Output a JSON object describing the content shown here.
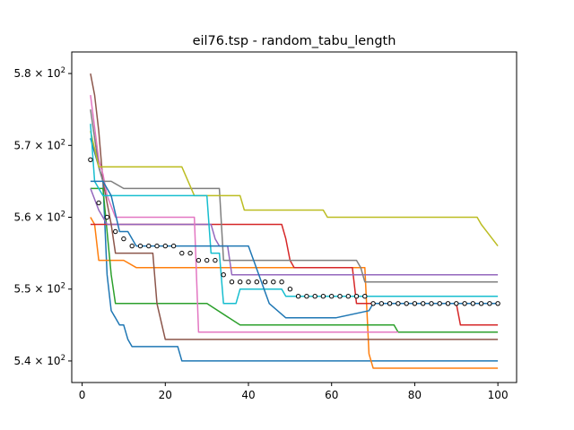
{
  "chart_data": {
    "type": "line",
    "title": "eil76.tsp - random_tabu_length",
    "xlabel": "",
    "ylabel": "",
    "xlim": [
      -2.5,
      104.5
    ],
    "ylim": [
      537,
      583
    ],
    "xticks": [
      {
        "value": 0,
        "label": "0"
      },
      {
        "value": 20,
        "label": "20"
      },
      {
        "value": 40,
        "label": "40"
      },
      {
        "value": 60,
        "label": "60"
      },
      {
        "value": 80,
        "label": "80"
      },
      {
        "value": 100,
        "label": "100"
      }
    ],
    "yticks": [
      {
        "value": 540,
        "base": "5.4",
        "exp": "2"
      },
      {
        "value": 550,
        "base": "5.5",
        "exp": "2"
      },
      {
        "value": 560,
        "base": "5.6",
        "exp": "2"
      },
      {
        "value": 570,
        "base": "5.7",
        "exp": "2"
      },
      {
        "value": 580,
        "base": "5.8",
        "exp": "2"
      }
    ],
    "grid": false,
    "legend": "none",
    "colors": [
      "#1f77b4",
      "#ff7f0e",
      "#2ca02c",
      "#d62728",
      "#9467bd",
      "#8c564b",
      "#e377c2",
      "#7f7f7f",
      "#bcbd22",
      "#17becf"
    ],
    "series": [
      {
        "values": [
          [
            2,
            571
          ],
          [
            3,
            569
          ],
          [
            5,
            565
          ],
          [
            6,
            552
          ],
          [
            7,
            547
          ],
          [
            8,
            546
          ],
          [
            9,
            545
          ],
          [
            10,
            545
          ],
          [
            11,
            543
          ],
          [
            12,
            542
          ],
          [
            23,
            542
          ],
          [
            24,
            540
          ],
          [
            100,
            540
          ]
        ]
      },
      {
        "values": [
          [
            2,
            560
          ],
          [
            3,
            559
          ],
          [
            4,
            554
          ],
          [
            10,
            554
          ],
          [
            13,
            553
          ],
          [
            16,
            553
          ],
          [
            17,
            553
          ],
          [
            68,
            553
          ],
          [
            69,
            541
          ],
          [
            70,
            539
          ],
          [
            100,
            539
          ]
        ]
      },
      {
        "values": [
          [
            2,
            564
          ],
          [
            4,
            564
          ],
          [
            5,
            564
          ],
          [
            7,
            552
          ],
          [
            8,
            548
          ],
          [
            29,
            548
          ],
          [
            30,
            548
          ],
          [
            38,
            545
          ],
          [
            39,
            545
          ],
          [
            75,
            545
          ],
          [
            76,
            544
          ],
          [
            100,
            544
          ]
        ]
      },
      {
        "values": [
          [
            2,
            559
          ],
          [
            4,
            559
          ],
          [
            6,
            559
          ],
          [
            48,
            559
          ],
          [
            49,
            557
          ],
          [
            50,
            554
          ],
          [
            51,
            553
          ],
          [
            65,
            553
          ],
          [
            66,
            548
          ],
          [
            67,
            548
          ],
          [
            70,
            548
          ],
          [
            90,
            548
          ],
          [
            91,
            545
          ],
          [
            100,
            545
          ]
        ]
      },
      {
        "values": [
          [
            2,
            564
          ],
          [
            4,
            561
          ],
          [
            6,
            559
          ],
          [
            31,
            559
          ],
          [
            32,
            557
          ],
          [
            33,
            556
          ],
          [
            35,
            556
          ],
          [
            36,
            552
          ],
          [
            94,
            552
          ],
          [
            95,
            552
          ],
          [
            100,
            552
          ]
        ]
      },
      {
        "values": [
          [
            2,
            580
          ],
          [
            3,
            577
          ],
          [
            4,
            572
          ],
          [
            5,
            565
          ],
          [
            7,
            559
          ],
          [
            8,
            555
          ],
          [
            9,
            555
          ],
          [
            17,
            555
          ],
          [
            18,
            548
          ],
          [
            20,
            543
          ],
          [
            21,
            543
          ],
          [
            100,
            543
          ]
        ]
      },
      {
        "values": [
          [
            2,
            577
          ],
          [
            4,
            568
          ],
          [
            5,
            566
          ],
          [
            6,
            563
          ],
          [
            8,
            560
          ],
          [
            27,
            560
          ],
          [
            28,
            544
          ],
          [
            55,
            544
          ],
          [
            76,
            544
          ]
        ]
      },
      {
        "values": [
          [
            2,
            575
          ],
          [
            4,
            567
          ],
          [
            5,
            565
          ],
          [
            7,
            565
          ],
          [
            10,
            564
          ],
          [
            32,
            564
          ],
          [
            33,
            564
          ],
          [
            34,
            554
          ],
          [
            66,
            554
          ],
          [
            67,
            553
          ],
          [
            68,
            551
          ],
          [
            100,
            551
          ]
        ]
      },
      {
        "values": [
          [
            2,
            572
          ],
          [
            4,
            567
          ],
          [
            6,
            567
          ],
          [
            24,
            567
          ],
          [
            27,
            563
          ],
          [
            36,
            563
          ],
          [
            38,
            563
          ],
          [
            39,
            561
          ],
          [
            58,
            561
          ],
          [
            59,
            560
          ],
          [
            95,
            560
          ],
          [
            96,
            559
          ],
          [
            100,
            556
          ]
        ]
      },
      {
        "values": [
          [
            2,
            573
          ],
          [
            3,
            565
          ],
          [
            4,
            564
          ],
          [
            5,
            563
          ],
          [
            30,
            563
          ],
          [
            31,
            555
          ],
          [
            33,
            555
          ],
          [
            34,
            548
          ],
          [
            35,
            548
          ],
          [
            37,
            548
          ],
          [
            38,
            550
          ],
          [
            48,
            550
          ],
          [
            49,
            549
          ],
          [
            100,
            549
          ]
        ]
      },
      {
        "values": [
          [
            2,
            565
          ],
          [
            5,
            565
          ],
          [
            6,
            564
          ],
          [
            7,
            563
          ],
          [
            9,
            558
          ],
          [
            11,
            558
          ],
          [
            13,
            556
          ],
          [
            40,
            556
          ],
          [
            45,
            548
          ],
          [
            49,
            546
          ],
          [
            50,
            546
          ],
          [
            51,
            546
          ],
          [
            52,
            546
          ],
          [
            61,
            546
          ],
          [
            69,
            547
          ],
          [
            70,
            548
          ],
          [
            100,
            548
          ]
        ]
      }
    ],
    "markers": {
      "color": "#000000",
      "fill": "#ffffff",
      "values": [
        [
          2,
          568
        ],
        [
          4,
          562
        ],
        [
          6,
          560
        ],
        [
          8,
          558
        ],
        [
          10,
          557
        ],
        [
          12,
          556
        ],
        [
          14,
          556
        ],
        [
          16,
          556
        ],
        [
          18,
          556
        ],
        [
          20,
          556
        ],
        [
          22,
          556
        ],
        [
          24,
          555
        ],
        [
          26,
          555
        ],
        [
          28,
          554
        ],
        [
          30,
          554
        ],
        [
          32,
          554
        ],
        [
          34,
          552
        ],
        [
          36,
          551
        ],
        [
          38,
          551
        ],
        [
          40,
          551
        ],
        [
          42,
          551
        ],
        [
          44,
          551
        ],
        [
          46,
          551
        ],
        [
          48,
          551
        ],
        [
          50,
          550
        ],
        [
          52,
          549
        ],
        [
          54,
          549
        ],
        [
          56,
          549
        ],
        [
          58,
          549
        ],
        [
          60,
          549
        ],
        [
          62,
          549
        ],
        [
          64,
          549
        ],
        [
          66,
          549
        ],
        [
          68,
          549
        ],
        [
          70,
          548
        ],
        [
          72,
          548
        ],
        [
          74,
          548
        ],
        [
          76,
          548
        ],
        [
          78,
          548
        ],
        [
          80,
          548
        ],
        [
          82,
          548
        ],
        [
          84,
          548
        ],
        [
          86,
          548
        ],
        [
          88,
          548
        ],
        [
          90,
          548
        ],
        [
          92,
          548
        ],
        [
          94,
          548
        ],
        [
          96,
          548
        ],
        [
          98,
          548
        ],
        [
          100,
          548
        ]
      ]
    }
  }
}
